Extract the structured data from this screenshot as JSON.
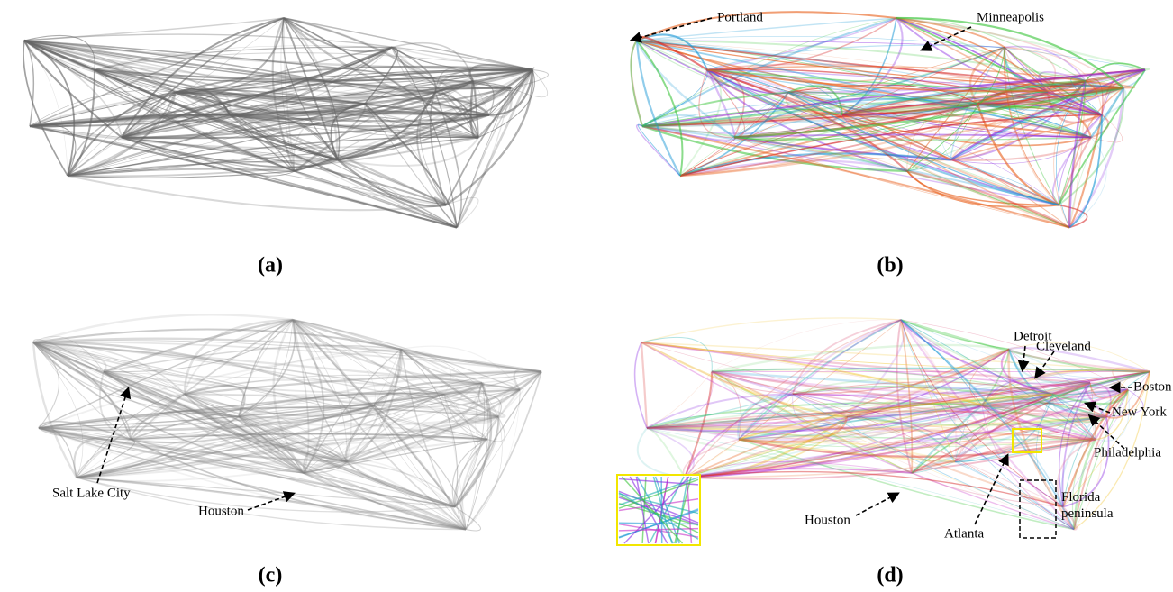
{
  "panels": [
    {
      "label": "(a)"
    },
    {
      "label": "(b)",
      "annotations": [
        "Portland",
        "Minneapolis"
      ]
    },
    {
      "label": "(c)",
      "annotations": [
        "Salt Lake City",
        "Houston"
      ]
    },
    {
      "label": "(d)",
      "annotations": [
        "Detroit",
        "Cleveland",
        "Boston",
        "New York",
        "Philadelphia",
        "Houston",
        "Atlanta",
        "Florida peninsula"
      ]
    }
  ]
}
